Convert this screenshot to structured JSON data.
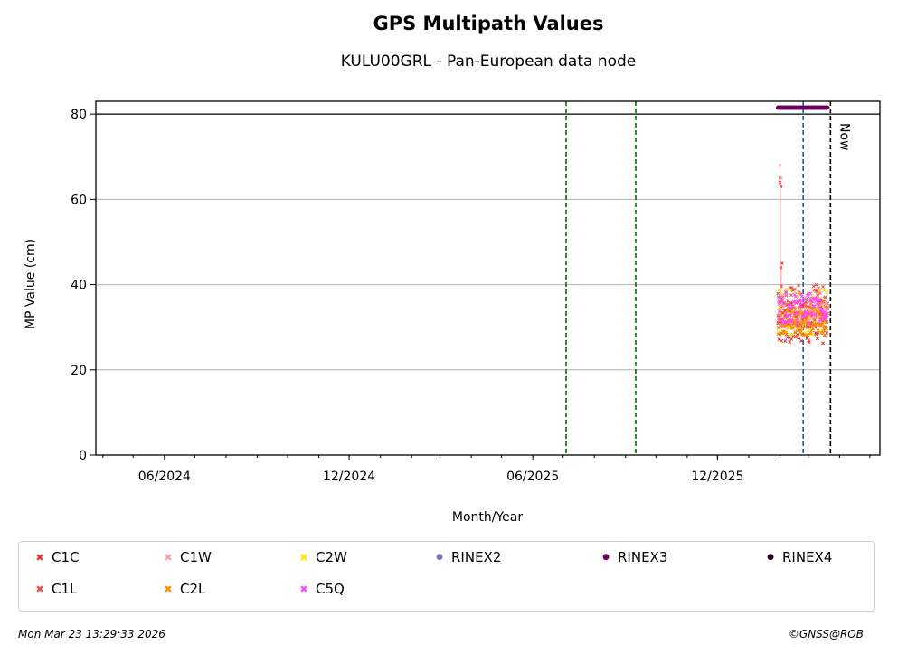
{
  "chart_data": {
    "type": "scatter",
    "title": "GPS Multipath Values",
    "subtitle": "KULU00GRL - Pan-European data node",
    "xlabel": "Month/Year",
    "ylabel": "MP Value (cm)",
    "x_range": [
      "2024-03-25",
      "2026-05-11"
    ],
    "y_range": [
      0,
      83
    ],
    "y_ticks": [
      0,
      20,
      40,
      60,
      80
    ],
    "x_ticks": [
      {
        "date": "2024-06-01",
        "label": "06/2024"
      },
      {
        "date": "2024-12-01",
        "label": "12/2024"
      },
      {
        "date": "2025-06-01",
        "label": "06/2025"
      },
      {
        "date": "2025-12-01",
        "label": "12/2025"
      }
    ],
    "grid": "horizontal",
    "reference_lines": [
      {
        "type": "horizontal",
        "y": 80,
        "color": "#000000",
        "style": "solid"
      },
      {
        "type": "vertical",
        "date": "2025-07-04",
        "color": "#007000",
        "style": "dashed"
      },
      {
        "type": "vertical",
        "date": "2025-09-11",
        "color": "#007000",
        "style": "dashed"
      },
      {
        "type": "vertical",
        "date": "2026-02-24",
        "color": "#1f5f9f",
        "style": "dashed"
      },
      {
        "type": "vertical",
        "date": "2026-03-23",
        "color": "#000000",
        "style": "dashed",
        "label": "Now"
      }
    ],
    "series": [
      {
        "name": "C1C",
        "color": "#e8302a",
        "marker": "x",
        "date_range": [
          "2026-01-30",
          "2026-03-20"
        ],
        "value_range": [
          26,
          36
        ],
        "outliers": [
          65,
          63,
          45
        ]
      },
      {
        "name": "C1W",
        "color": "#ff9aa8",
        "marker": "x",
        "date_range": [
          "2026-01-30",
          "2026-03-20"
        ],
        "value_range": [
          30,
          36
        ],
        "outliers": [
          68,
          65
        ]
      },
      {
        "name": "C2W",
        "color": "#ffe000",
        "marker": "x",
        "date_range": [
          "2026-01-30",
          "2026-03-20"
        ],
        "value_range": [
          28,
          39
        ]
      },
      {
        "name": "C1L",
        "color": "#f04c4c",
        "marker": "x",
        "date_range": [
          "2026-01-30",
          "2026-03-20"
        ],
        "value_range": [
          30,
          40
        ],
        "outliers": [
          64,
          44
        ]
      },
      {
        "name": "C2L",
        "color": "#ff8c00",
        "marker": "x",
        "date_range": [
          "2026-01-30",
          "2026-03-20"
        ],
        "value_range": [
          28,
          35
        ]
      },
      {
        "name": "C5Q",
        "color": "#ff44ff",
        "marker": "x",
        "date_range": [
          "2026-01-30",
          "2026-03-20"
        ],
        "value_range": [
          31,
          38
        ]
      },
      {
        "name": "RINEX2",
        "color": "#7b7bbb",
        "marker": "o",
        "points": []
      },
      {
        "name": "RINEX3",
        "color": "#6a005f",
        "marker": "o",
        "date_range": [
          "2026-01-30",
          "2026-03-20"
        ],
        "value": 81.5
      },
      {
        "name": "RINEX4",
        "color": "#1a0018",
        "marker": "o",
        "points": []
      }
    ],
    "annotations": [
      "Now"
    ]
  },
  "legend": {
    "items": [
      {
        "label": "C1C",
        "color": "#e8302a",
        "marker": "x"
      },
      {
        "label": "C1W",
        "color": "#ff9aa8",
        "marker": "x"
      },
      {
        "label": "C2W",
        "color": "#ffe000",
        "marker": "x"
      },
      {
        "label": "RINEX2",
        "color": "#7b7bbb",
        "marker": "o"
      },
      {
        "label": "RINEX3",
        "color": "#6a005f",
        "marker": "o"
      },
      {
        "label": "RINEX4",
        "color": "#1a0018",
        "marker": "o"
      },
      {
        "label": "C1L",
        "color": "#f04c4c",
        "marker": "x"
      },
      {
        "label": "C2L",
        "color": "#ff8c00",
        "marker": "x"
      },
      {
        "label": "C5Q",
        "color": "#ff44ff",
        "marker": "x"
      }
    ]
  },
  "footer": {
    "timestamp": "Mon Mar 23 13:29:33 2026",
    "credit": "©GNSS@ROB"
  }
}
